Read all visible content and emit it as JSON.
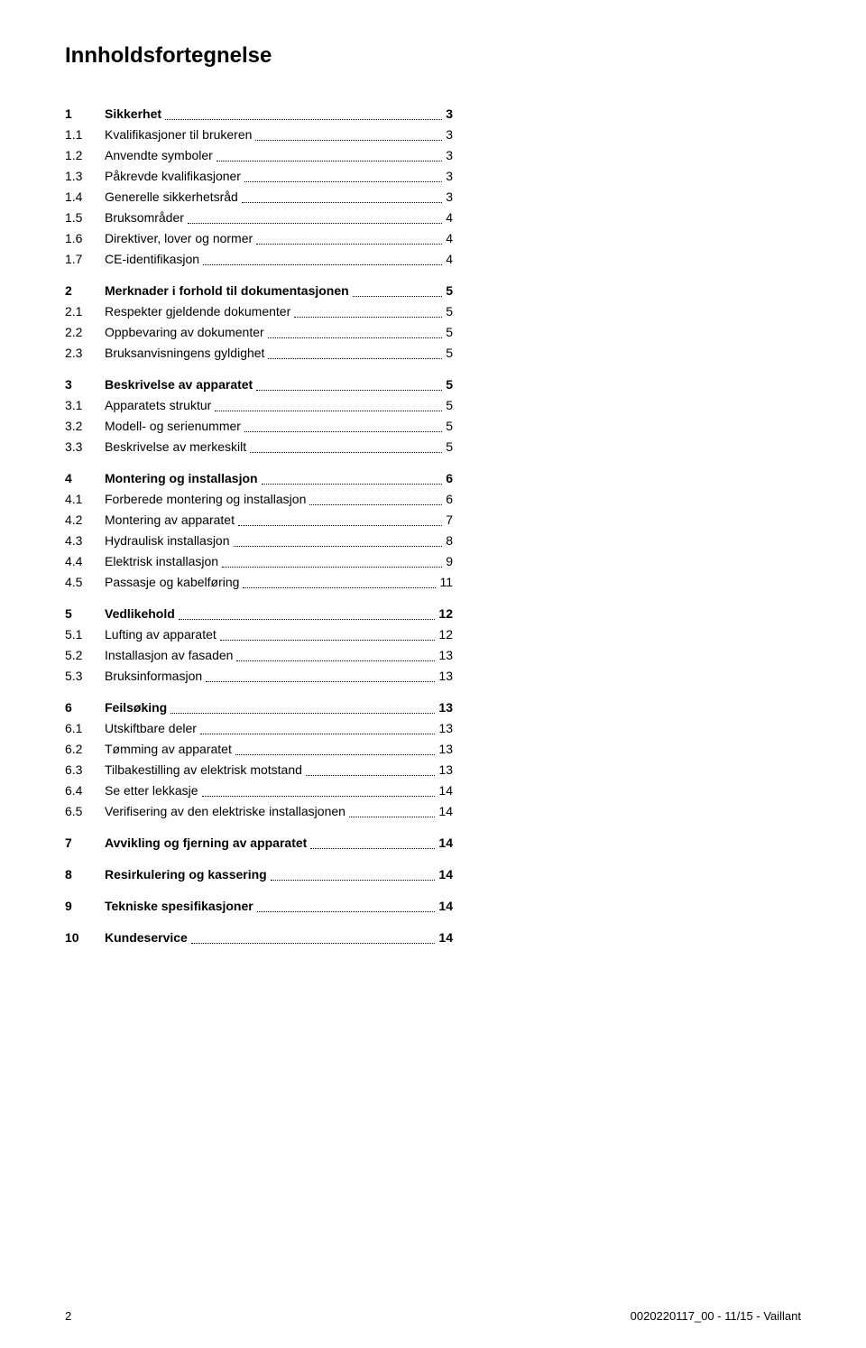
{
  "title": "Innholdsfortegnelse",
  "footer": {
    "page_number": "2",
    "doc_ref": "0020220117_00 - 11/15 - Vaillant"
  },
  "toc": [
    {
      "group": true
    },
    {
      "num": "1",
      "label": "Sikkerhet",
      "page": "3",
      "level": 0
    },
    {
      "num": "1.1",
      "label": "Kvalifikasjoner til brukeren",
      "page": "3",
      "level": 1
    },
    {
      "num": "1.2",
      "label": "Anvendte symboler",
      "page": "3",
      "level": 1
    },
    {
      "num": "1.3",
      "label": "Påkrevde kvalifikasjoner",
      "page": "3",
      "level": 1
    },
    {
      "num": "1.4",
      "label": "Generelle sikkerhetsråd",
      "page": "3",
      "level": 1
    },
    {
      "num": "1.5",
      "label": "Bruksområder",
      "page": "4",
      "level": 1
    },
    {
      "num": "1.6",
      "label": "Direktiver, lover og normer",
      "page": "4",
      "level": 1
    },
    {
      "num": "1.7",
      "label": "CE-identifikasjon",
      "page": "4",
      "level": 1
    },
    {
      "group": true
    },
    {
      "num": "2",
      "label": "Merknader i forhold til dokumentasjonen",
      "page": "5",
      "level": 0
    },
    {
      "num": "2.1",
      "label": "Respekter gjeldende dokumenter",
      "page": "5",
      "level": 1
    },
    {
      "num": "2.2",
      "label": "Oppbevaring av dokumenter",
      "page": "5",
      "level": 1
    },
    {
      "num": "2.3",
      "label": "Bruksanvisningens gyldighet",
      "page": "5",
      "level": 1
    },
    {
      "group": true
    },
    {
      "num": "3",
      "label": "Beskrivelse av apparatet",
      "page": "5",
      "level": 0
    },
    {
      "num": "3.1",
      "label": "Apparatets struktur",
      "page": "5",
      "level": 1
    },
    {
      "num": "3.2",
      "label": "Modell- og serienummer",
      "page": "5",
      "level": 1
    },
    {
      "num": "3.3",
      "label": "Beskrivelse av merkeskilt",
      "page": "5",
      "level": 1
    },
    {
      "group": true
    },
    {
      "num": "4",
      "label": "Montering og installasjon",
      "page": "6",
      "level": 0
    },
    {
      "num": "4.1",
      "label": "Forberede montering og installasjon",
      "page": "6",
      "level": 1
    },
    {
      "num": "4.2",
      "label": "Montering av apparatet",
      "page": "7",
      "level": 1
    },
    {
      "num": "4.3",
      "label": "Hydraulisk installasjon",
      "page": "8",
      "level": 1
    },
    {
      "num": "4.4",
      "label": "Elektrisk installasjon",
      "page": "9",
      "level": 1
    },
    {
      "num": "4.5",
      "label": "Passasje og kabelføring",
      "page": "11",
      "level": 1
    },
    {
      "group": true
    },
    {
      "num": "5",
      "label": "Vedlikehold",
      "page": "12",
      "level": 0
    },
    {
      "num": "5.1",
      "label": "Lufting av apparatet",
      "page": "12",
      "level": 1
    },
    {
      "num": "5.2",
      "label": "Installasjon av fasaden",
      "page": "13",
      "level": 1
    },
    {
      "num": "5.3",
      "label": "Bruksinformasjon",
      "page": "13",
      "level": 1
    },
    {
      "group": true
    },
    {
      "num": "6",
      "label": "Feilsøking",
      "page": "13",
      "level": 0
    },
    {
      "num": "6.1",
      "label": "Utskiftbare deler",
      "page": "13",
      "level": 1
    },
    {
      "num": "6.2",
      "label": "Tømming av apparatet",
      "page": "13",
      "level": 1
    },
    {
      "num": "6.3",
      "label": "Tilbakestilling av elektrisk motstand",
      "page": "13",
      "level": 1
    },
    {
      "num": "6.4",
      "label": "Se etter lekkasje",
      "page": "14",
      "level": 1
    },
    {
      "num": "6.5",
      "label": "Verifisering av den elektriske installasjonen",
      "page": "14",
      "level": 1
    },
    {
      "group": true
    },
    {
      "num": "7",
      "label": "Avvikling og fjerning av apparatet",
      "page": "14",
      "level": 0
    },
    {
      "group": true
    },
    {
      "num": "8",
      "label": "Resirkulering og kassering",
      "page": "14",
      "level": 0
    },
    {
      "group": true
    },
    {
      "num": "9",
      "label": "Tekniske spesifikasjoner",
      "page": "14",
      "level": 0
    },
    {
      "group": true
    },
    {
      "num": "10",
      "label": "Kundeservice",
      "page": "14",
      "level": 0
    }
  ]
}
